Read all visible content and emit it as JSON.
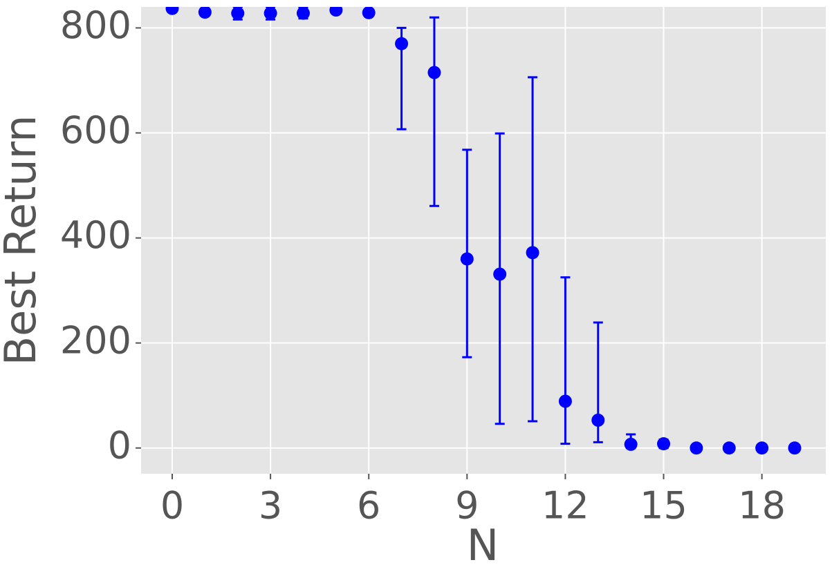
{
  "chart_data": {
    "type": "scatter",
    "xlabel": "N",
    "ylabel": "Best Return",
    "x": [
      0,
      1,
      2,
      3,
      4,
      5,
      6,
      7,
      8,
      9,
      10,
      11,
      12,
      13,
      14,
      15,
      16,
      17,
      18,
      19
    ],
    "values": [
      837,
      830,
      828,
      828,
      828,
      834,
      829,
      770,
      715,
      360,
      331,
      372,
      89,
      53,
      7,
      8,
      0,
      0,
      0,
      0
    ],
    "err_minus": [
      2,
      2,
      12,
      12,
      10,
      3,
      3,
      163,
      254,
      187,
      285,
      321,
      81,
      42,
      7,
      8,
      0,
      0,
      0,
      0
    ],
    "err_plus": [
      2,
      2,
      12,
      12,
      10,
      3,
      3,
      30,
      105,
      208,
      268,
      334,
      236,
      186,
      19,
      8,
      0,
      0,
      0,
      0
    ],
    "color": "#0000ff",
    "xlim": [
      -0.95,
      19.95
    ],
    "xticks": [
      0,
      3,
      6,
      9,
      12,
      15,
      18
    ],
    "ylim": [
      -49,
      840
    ],
    "yticks": [
      0,
      200,
      400,
      600,
      800
    ],
    "grid": true
  }
}
